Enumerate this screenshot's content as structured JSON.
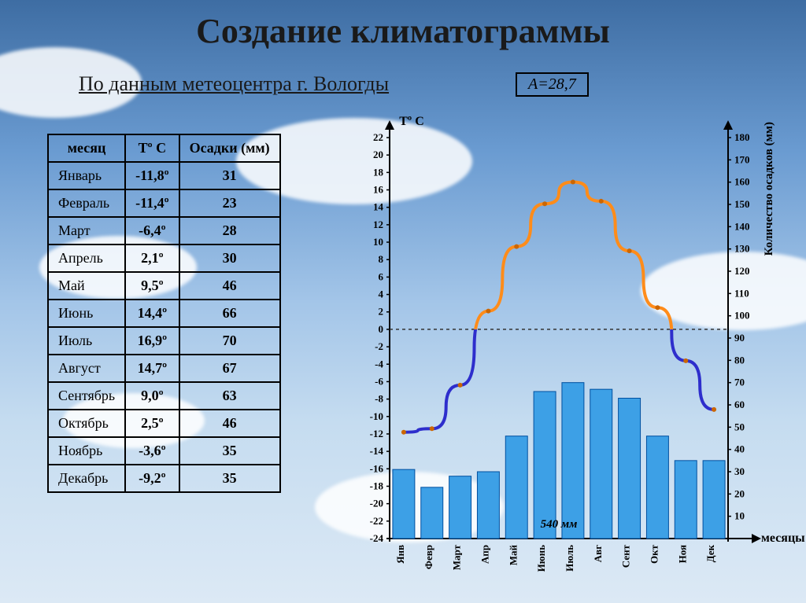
{
  "title": "Создание климатограммы",
  "subtitle": "По данным метеоцентра г. Вологды",
  "amplitude_label": "A=28,7",
  "table": {
    "headers": {
      "month": "месяц",
      "temp": "Tº C",
      "precip": "Осадки (мм)"
    },
    "rows": [
      {
        "month": "Январь",
        "temp": "-11,8º",
        "precip": 31
      },
      {
        "month": "Февраль",
        "temp": "-11,4º",
        "precip": 23
      },
      {
        "month": "Март",
        "temp": "-6,4º",
        "precip": 28
      },
      {
        "month": "Апрель",
        "temp": "2,1º",
        "precip": 30
      },
      {
        "month": "Май",
        "temp": "9,5º",
        "precip": 46
      },
      {
        "month": "Июнь",
        "temp": "14,4º",
        "precip": 66
      },
      {
        "month": "Июль",
        "temp": "16,9º",
        "precip": 70
      },
      {
        "month": "Август",
        "temp": "14,7º",
        "precip": 67
      },
      {
        "month": "Сентябрь",
        "temp": "9,0º",
        "precip": 63
      },
      {
        "month": "Октябрь",
        "temp": "2,5º",
        "precip": 46
      },
      {
        "month": "Ноябрь",
        "temp": "-3,6º",
        "precip": 35
      },
      {
        "month": "Декабрь",
        "temp": "-9,2º",
        "precip": 35
      }
    ]
  },
  "chart": {
    "type": "climatogram",
    "months_short": [
      "Янв",
      "Февр",
      "Март",
      "Апр",
      "Май",
      "Июнь",
      "Июль",
      "Авг",
      "Сент",
      "Окт",
      "Ноя",
      "Дек"
    ],
    "temp_values": [
      -11.8,
      -11.4,
      -6.4,
      2.1,
      9.5,
      14.4,
      16.9,
      14.7,
      9.0,
      2.5,
      -3.6,
      -9.2
    ],
    "precip_values": [
      31,
      23,
      28,
      30,
      46,
      66,
      70,
      67,
      63,
      46,
      35,
      35
    ],
    "precip_sum_label": "540 мм",
    "temp_axis": {
      "label": "Tº C",
      "min": -24,
      "max": 22,
      "step": 2
    },
    "precip_axis": {
      "label": "Количество осадков (мм)",
      "min": 0,
      "max": 180,
      "step": 10
    },
    "x_axis_label": "месяцы",
    "colors": {
      "temp_line_warm": "#ff8c1a",
      "temp_line_cold": "#2e2ecc",
      "temp_marker": "#cc6600",
      "bars_fill": "#3da0e6",
      "bars_stroke": "#0050a0",
      "axis": "#000000",
      "zero_line": "#333333",
      "background": "transparent"
    },
    "line_width": 4,
    "marker_radius": 3,
    "bar_width_ratio": 0.78
  }
}
